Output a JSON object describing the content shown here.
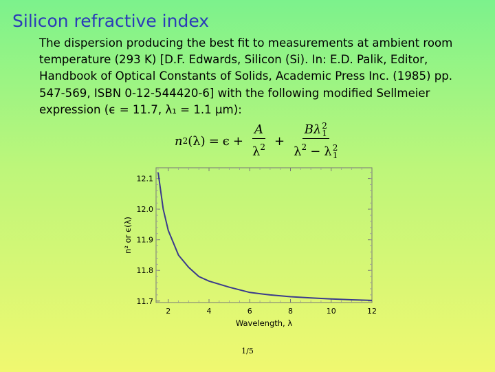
{
  "slide": {
    "title": "Silicon refractive index",
    "paragraph": "The dispersion producing the best fit to measurements at ambient room temperature (293 K) [D.F. Edwards, Silicon (Si). In: E.D. Palik, Editor, Handbook of Optical Constants of Solids, Academic Press Inc. (1985) pp. 547-569, ISBN 0-12-544420-6] with the following modified Sellmeier expression (ϵ = 11.7, λ₁ = 1.1 μm):",
    "page_number": "1/5"
  },
  "formula": {
    "lhs_var": "n",
    "lhs_exp": "2",
    "lhs_arg": "(λ)",
    "equals": "=",
    "epsilon": "ϵ",
    "plus": "+",
    "frac1_num": "A",
    "frac1_den_base": "λ",
    "frac1_den_exp": "2",
    "frac2_num_var": "Bλ",
    "frac2_num_sup": "2",
    "frac2_num_sub": "1",
    "frac2_den_a": "λ",
    "frac2_den_a_exp": "2",
    "frac2_minus": "−",
    "frac2_den_b": "λ",
    "frac2_den_b_sup": "2",
    "frac2_den_b_sub": "1"
  },
  "chart_data": {
    "type": "line",
    "title": "",
    "xlabel": "Wavelength, λ",
    "ylabel": "n² or ϵ(λ)",
    "xlim": [
      1.4,
      12.0
    ],
    "ylim": [
      11.695,
      12.135
    ],
    "xticks": [
      2,
      4,
      6,
      8,
      10,
      12
    ],
    "yticks": [
      11.7,
      11.8,
      11.9,
      12.0,
      12.1
    ],
    "grid": false,
    "line_color": "#3a3a8c",
    "series": [
      {
        "x": [
          1.5,
          1.75,
          2.0,
          2.5,
          3.0,
          3.5,
          4.0,
          5.0,
          6.0,
          7.0,
          8.0,
          9.0,
          10.0,
          11.0,
          12.0
        ],
        "y": [
          12.12,
          12.0,
          11.93,
          11.85,
          11.81,
          11.78,
          11.765,
          11.745,
          11.728,
          11.72,
          11.714,
          11.71,
          11.707,
          11.704,
          11.702
        ]
      }
    ]
  }
}
